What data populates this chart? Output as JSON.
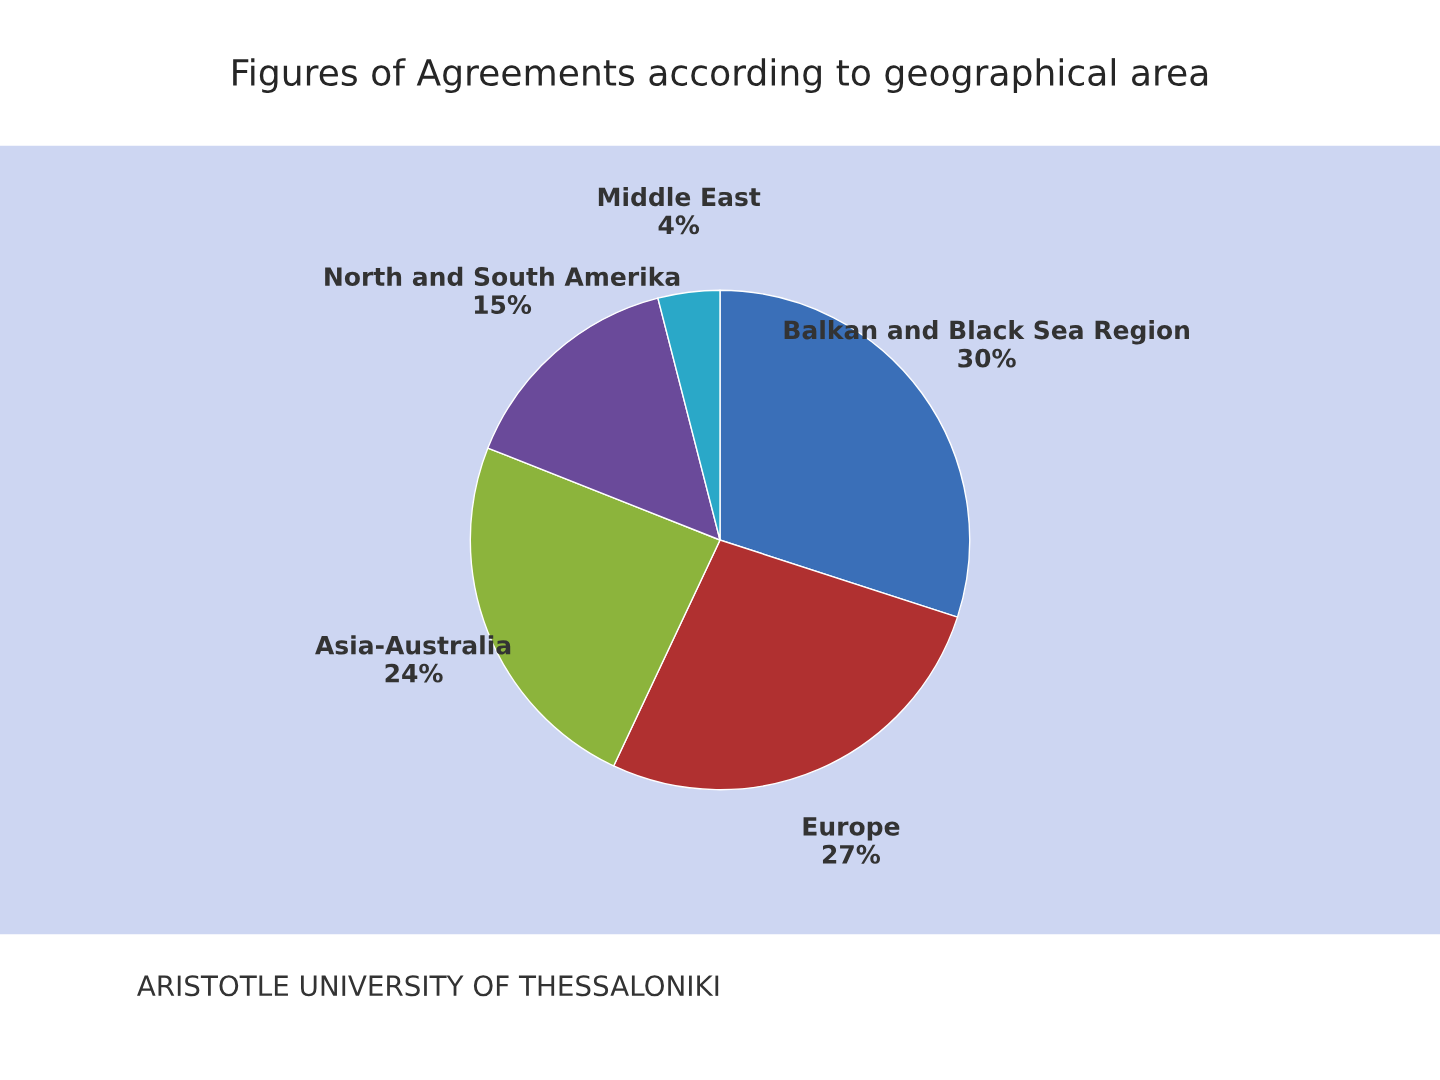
{
  "chart_data": {
    "type": "pie",
    "title": "Figures of Agreements according to geographical area",
    "categories": [
      "Balkan and Black Sea Region",
      "Europe",
      "Asia-Australia",
      "North and South Amerika",
      "Middle East"
    ],
    "values": [
      30,
      27,
      24,
      15,
      4
    ],
    "value_labels": [
      "30%",
      "27%",
      "24%",
      "15%",
      "4%"
    ],
    "colors": [
      "#3a6fb8",
      "#b03030",
      "#8cb43c",
      "#6a4a9a",
      "#2aa8c8"
    ],
    "annotations": [
      "ARISTOTLE UNIVERSITY OF THESSALONIKI"
    ]
  }
}
